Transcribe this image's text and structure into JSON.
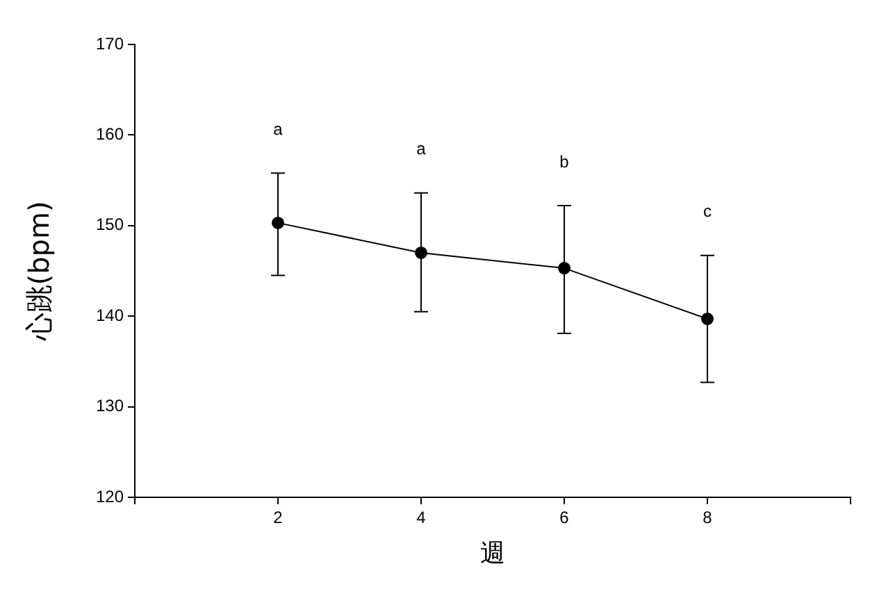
{
  "chart_data": {
    "type": "line",
    "xlabel": "週",
    "ylabel": "心跳(bpm)",
    "x": [
      2,
      4,
      6,
      8
    ],
    "series": [
      {
        "color": "#000000",
        "values": [
          150.3,
          147.0,
          145.3,
          139.7
        ],
        "errors": [
          [
            144.5,
            155.8
          ],
          [
            140.5,
            153.6
          ],
          [
            138.1,
            152.2
          ],
          [
            132.7,
            146.7
          ]
        ]
      }
    ],
    "xlim": [
      0,
      10
    ],
    "xticks": [
      {
        "value": 0,
        "label": null
      },
      2,
      4,
      6,
      8,
      {
        "value": 10,
        "label": null
      }
    ],
    "ylim": [
      120,
      170
    ],
    "yticks": [
      120,
      130,
      140,
      150,
      160,
      170
    ],
    "annotations": [
      "a",
      "a",
      "b",
      "c"
    ],
    "marker": "circle",
    "line_style": "solid",
    "grid": false,
    "legend": false
  }
}
